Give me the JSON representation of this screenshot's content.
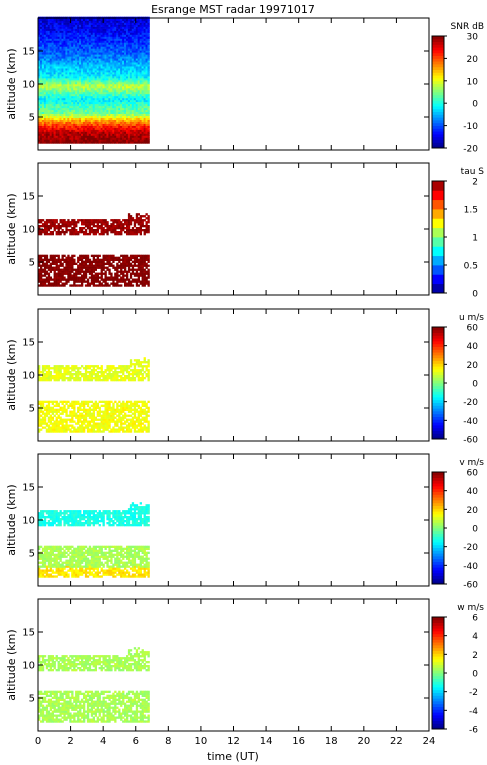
{
  "figure": {
    "title": "Esrange MST radar 19971017",
    "xlabel": "time (UT)",
    "ylabel": "altitude (km)"
  },
  "chart_data": [
    {
      "type": "heatmap",
      "variable": "SNR",
      "colorbar_title": "SNR dB",
      "xlim": [
        0,
        24
      ],
      "ylim": [
        0,
        20
      ],
      "x_ticks": [
        0,
        2,
        4,
        6,
        8,
        10,
        12,
        14,
        16,
        18,
        20,
        22,
        24
      ],
      "y_ticks": [
        5,
        10,
        15
      ],
      "clim": [
        -20,
        30
      ],
      "cbar_ticks": [
        -20,
        -10,
        0,
        10,
        20,
        30
      ],
      "data_time_range": [
        0,
        6.8
      ],
      "profile": [
        {
          "alt": 1.0,
          "value": 30
        },
        {
          "alt": 2.5,
          "value": 27
        },
        {
          "alt": 3.5,
          "value": 22
        },
        {
          "alt": 4.5,
          "value": 14
        },
        {
          "alt": 5.5,
          "value": 4
        },
        {
          "alt": 6.5,
          "value": 2
        },
        {
          "alt": 7.5,
          "value": -2
        },
        {
          "alt": 8.5,
          "value": 3
        },
        {
          "alt": 9.5,
          "value": 8
        },
        {
          "alt": 11,
          "value": -2
        },
        {
          "alt": 12.5,
          "value": -4
        },
        {
          "alt": 14,
          "value": -8
        },
        {
          "alt": 16,
          "value": -11
        },
        {
          "alt": 18,
          "value": -14
        },
        {
          "alt": 20,
          "value": -16
        }
      ]
    },
    {
      "type": "heatmap",
      "variable": "tau",
      "colorbar_title": "tau S",
      "xlim": [
        0,
        24
      ],
      "ylim": [
        0,
        20
      ],
      "x_ticks": [
        0,
        2,
        4,
        6,
        8,
        10,
        12,
        14,
        16,
        18,
        20,
        22,
        24
      ],
      "y_ticks": [
        5,
        10,
        15
      ],
      "clim": [
        0,
        2
      ],
      "cbar_ticks": [
        0,
        0.5,
        1,
        1.5,
        2
      ],
      "data_time_range": [
        0,
        6.8
      ],
      "layers": [
        {
          "alt_range": [
            1.2,
            5.8
          ],
          "value": 2.0
        },
        {
          "alt_range": [
            8.8,
            11.5
          ],
          "value": 1.95
        }
      ]
    },
    {
      "type": "heatmap",
      "variable": "u",
      "colorbar_title": "u m/s",
      "xlim": [
        0,
        24
      ],
      "ylim": [
        0,
        20
      ],
      "x_ticks": [
        0,
        2,
        4,
        6,
        8,
        10,
        12,
        14,
        16,
        18,
        20,
        22,
        24
      ],
      "y_ticks": [
        5,
        10,
        15
      ],
      "clim": [
        -60,
        60
      ],
      "cbar_ticks": [
        -60,
        -40,
        -20,
        0,
        20,
        40,
        60
      ],
      "data_time_range": [
        0,
        6.8
      ],
      "layers": [
        {
          "alt_range": [
            1.2,
            5.8
          ],
          "value": 14
        },
        {
          "alt_range": [
            8.8,
            11.5
          ],
          "value": 12
        }
      ]
    },
    {
      "type": "heatmap",
      "variable": "v",
      "colorbar_title": "v m/s",
      "xlim": [
        0,
        24
      ],
      "ylim": [
        0,
        20
      ],
      "x_ticks": [
        0,
        2,
        4,
        6,
        8,
        10,
        12,
        14,
        16,
        18,
        20,
        22,
        24
      ],
      "y_ticks": [
        5,
        10,
        15
      ],
      "clim": [
        -60,
        60
      ],
      "cbar_ticks": [
        -60,
        -40,
        -20,
        0,
        20,
        40,
        60
      ],
      "data_time_range": [
        0,
        6.8
      ],
      "layers": [
        {
          "alt_range": [
            1.2,
            2.8
          ],
          "value": 18
        },
        {
          "alt_range": [
            2.8,
            5.8
          ],
          "value": 5
        },
        {
          "alt_range": [
            8.8,
            11.5
          ],
          "value": -12
        }
      ]
    },
    {
      "type": "heatmap",
      "variable": "w",
      "colorbar_title": "w m/s",
      "xlim": [
        0,
        24
      ],
      "ylim": [
        0,
        20
      ],
      "x_ticks": [
        0,
        2,
        4,
        6,
        8,
        10,
        12,
        14,
        16,
        18,
        20,
        22,
        24
      ],
      "y_ticks": [
        5,
        10,
        15
      ],
      "clim": [
        -6,
        6
      ],
      "cbar_ticks": [
        -6,
        -4,
        -2,
        0,
        2,
        4,
        6
      ],
      "data_time_range": [
        0,
        6.8
      ],
      "layers": [
        {
          "alt_range": [
            1.2,
            5.8
          ],
          "value": 0.5
        },
        {
          "alt_range": [
            8.8,
            11.5
          ],
          "value": 0.5
        }
      ]
    }
  ]
}
